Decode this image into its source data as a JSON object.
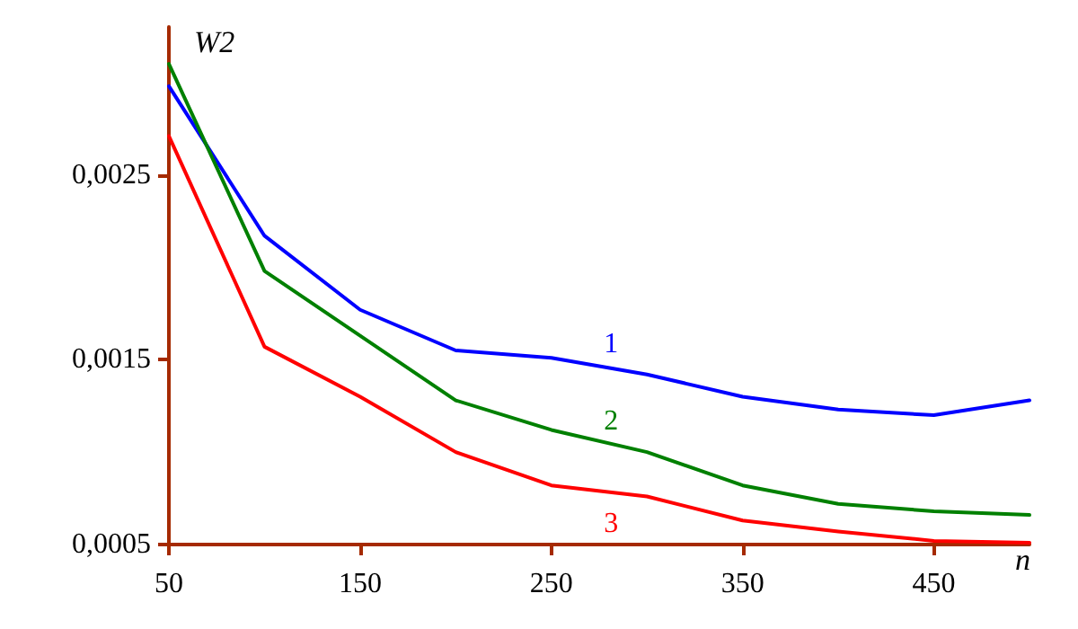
{
  "chart_data": {
    "type": "line",
    "xlabel": "n",
    "ylabel": "W2",
    "x": [
      50,
      100,
      150,
      200,
      250,
      300,
      350,
      400,
      450,
      500
    ],
    "series": [
      {
        "name": "1",
        "color": "#0000ff",
        "values": [
          0.00298,
          0.00217,
          0.00177,
          0.00155,
          0.00151,
          0.00142,
          0.0013,
          0.00123,
          0.0012,
          0.00128
        ]
      },
      {
        "name": "2",
        "color": "#008000",
        "values": [
          0.0031,
          0.00198,
          0.00163,
          0.00128,
          0.00112,
          0.001,
          0.00082,
          0.00072,
          0.00068,
          0.00066
        ]
      },
      {
        "name": "3",
        "color": "#ff0000",
        "values": [
          0.00271,
          0.00157,
          0.0013,
          0.001,
          0.00082,
          0.00076,
          0.00063,
          0.00057,
          0.00052,
          0.00051
        ]
      }
    ],
    "xlim": [
      50,
      500
    ],
    "xticks": [
      50,
      150,
      250,
      350,
      450
    ],
    "ylim": [
      0.0005,
      0.0033
    ],
    "yticks": [
      {
        "value": 0.0005,
        "label": "0,0005"
      },
      {
        "value": 0.0015,
        "label": "0,0015"
      },
      {
        "value": 0.0025,
        "label": "0,0025"
      }
    ],
    "grid": false,
    "legend": false,
    "marker": "none",
    "line_style": "solid"
  }
}
